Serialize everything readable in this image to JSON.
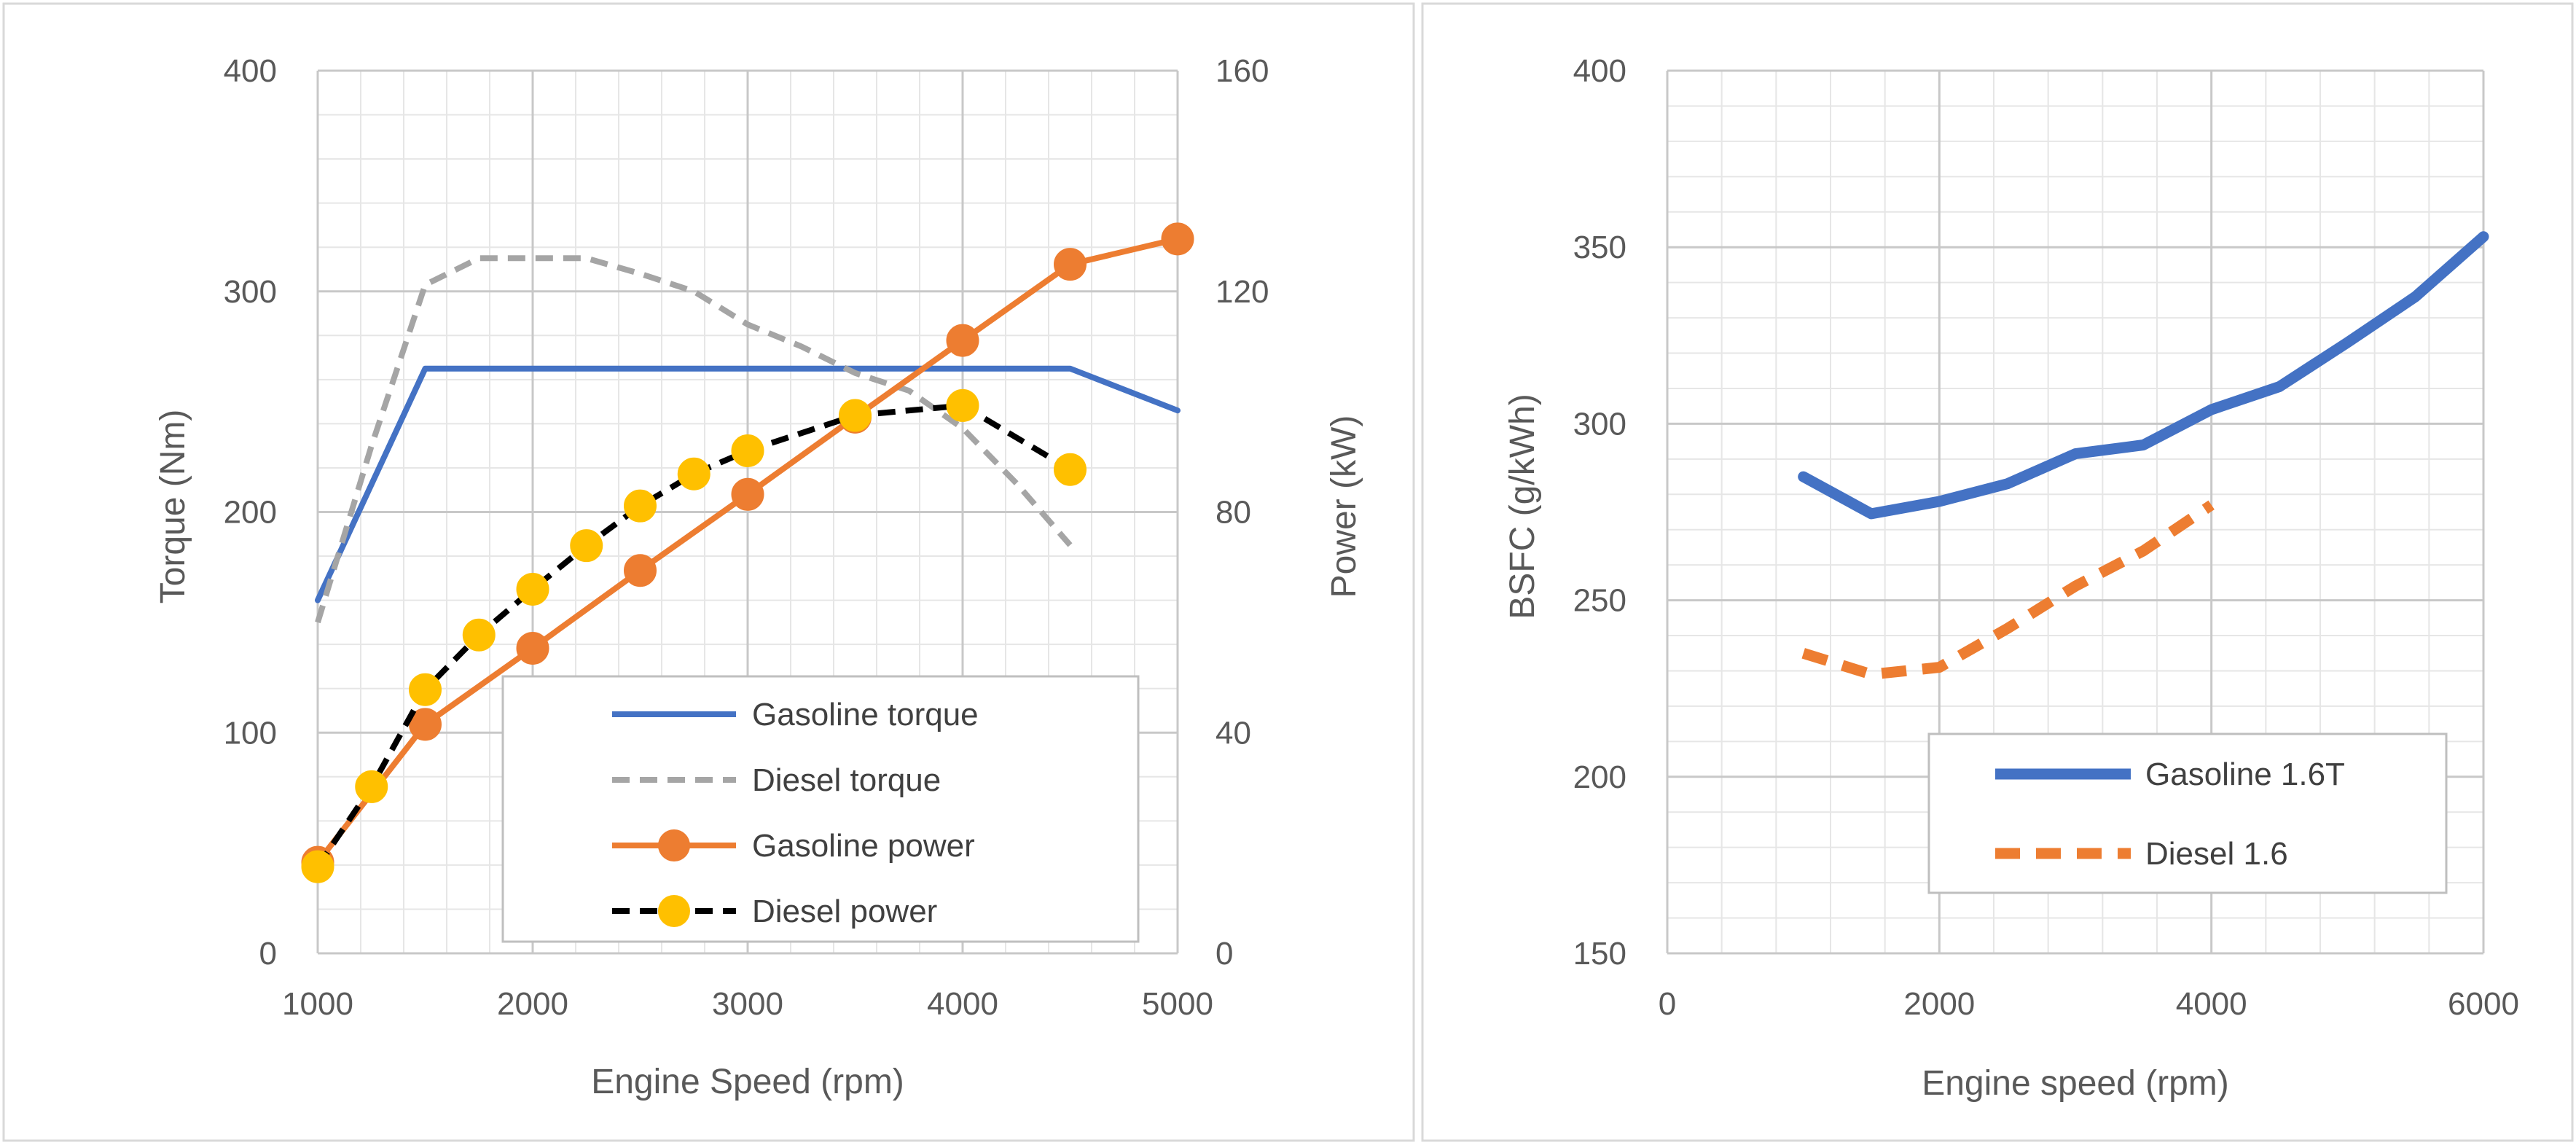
{
  "chart_data": [
    {
      "type": "line",
      "xlabel": "Engine Speed (rpm)",
      "ylabel": "Torque (Nm)",
      "y2label": "Power (kW)",
      "xlim": [
        1000,
        5000
      ],
      "ylim": [
        0,
        400
      ],
      "y2lim": [
        0,
        160
      ],
      "xticks": [
        1000,
        2000,
        3000,
        4000,
        5000
      ],
      "yticks": [
        0,
        100,
        200,
        300,
        400
      ],
      "y2ticks": [
        0,
        40,
        80,
        120,
        160
      ],
      "grid": true,
      "legend_position": "bottom-right",
      "series": [
        {
          "name": "Gasoline torque",
          "axis": "left",
          "color": "#4472c4",
          "style": "solid",
          "markers": false,
          "x": [
            1000,
            1500,
            2000,
            2500,
            3000,
            3500,
            4000,
            4500,
            5000
          ],
          "values": [
            160,
            265,
            265,
            265,
            265,
            265,
            265,
            265,
            246
          ]
        },
        {
          "name": "Diesel torque",
          "axis": "left",
          "color": "#a5a5a5",
          "style": "dashed",
          "markers": false,
          "x": [
            1000,
            1250,
            1500,
            1750,
            2000,
            2250,
            2500,
            2750,
            3000,
            3250,
            3500,
            3750,
            4000,
            4250,
            4500
          ],
          "values": [
            150,
            230,
            303,
            315,
            315,
            315,
            308,
            300,
            285,
            275,
            263,
            255,
            238,
            213,
            185
          ]
        },
        {
          "name": "Gasoline power",
          "axis": "right",
          "color": "#ed7d31",
          "style": "solid",
          "markers": true,
          "x": [
            1000,
            1500,
            2000,
            2500,
            3000,
            3500,
            4000,
            4500,
            5000
          ],
          "values": [
            16.5,
            41.5,
            55.3,
            69.4,
            83.2,
            97.2,
            111.1,
            124.9,
            129.5
          ]
        },
        {
          "name": "Diesel power",
          "axis": "right",
          "color": "#000000",
          "marker_color": "#ffc000",
          "style": "dashed",
          "markers": true,
          "x": [
            1000,
            1250,
            1500,
            1750,
            2000,
            2250,
            2500,
            2750,
            3000,
            3500,
            4000,
            4500
          ],
          "values": [
            15.7,
            30.2,
            47.8,
            57.7,
            66.0,
            73.9,
            81.1,
            86.9,
            91.1,
            97.5,
            99.3,
            87.7
          ]
        }
      ]
    },
    {
      "type": "line",
      "xlabel": "Engine speed (rpm)",
      "ylabel": "BSFC (g/kWh)",
      "xlim": [
        0,
        6000
      ],
      "ylim": [
        150,
        400
      ],
      "xticks": [
        0,
        2000,
        4000,
        6000
      ],
      "yticks": [
        150,
        200,
        250,
        300,
        350,
        400
      ],
      "grid": true,
      "legend_position": "bottom-right",
      "series": [
        {
          "name": "Gasoline 1.6T",
          "color": "#4472c4",
          "style": "solid",
          "markers": false,
          "x": [
            1000,
            1500,
            2000,
            2500,
            3000,
            3500,
            4000,
            4500,
            5000,
            5500,
            6000
          ],
          "values": [
            285,
            274.5,
            278,
            283,
            291.5,
            294,
            304,
            310.5,
            323,
            336,
            353
          ]
        },
        {
          "name": "Diesel 1.6",
          "color": "#ed7d31",
          "style": "dashed",
          "markers": false,
          "x": [
            1000,
            1500,
            2000,
            2500,
            3000,
            3500,
            4000
          ],
          "values": [
            235,
            229,
            231,
            242,
            254,
            264,
            277
          ]
        }
      ]
    }
  ]
}
